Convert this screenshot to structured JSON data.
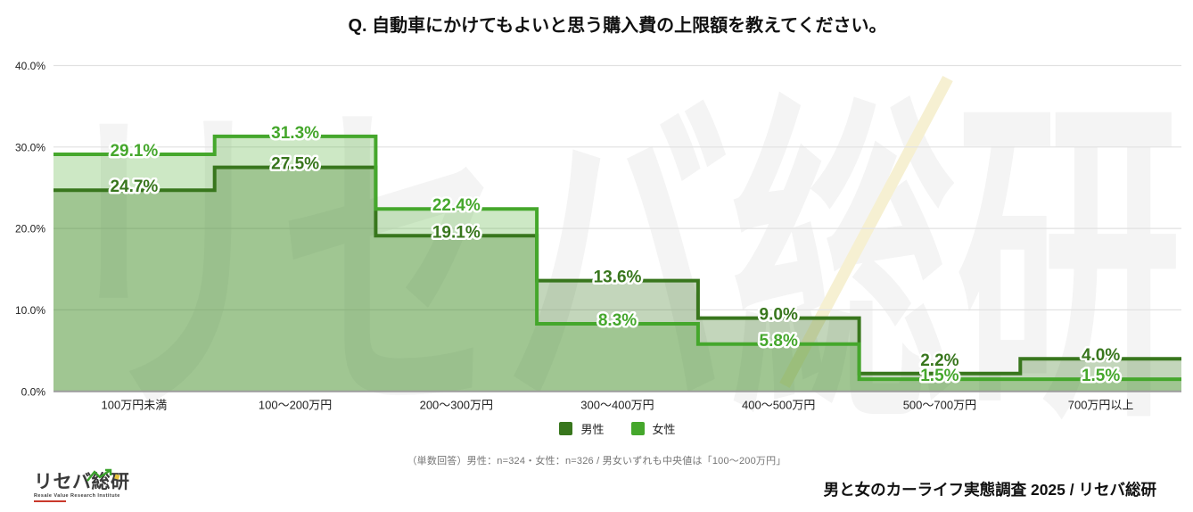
{
  "title": "Q. 自動車にかけてもよいと思う購入費の上限額を教えてください。",
  "chart_data": {
    "type": "area",
    "step": true,
    "title": "Q. 自動車にかけてもよいと思う購入費の上限額を教えてください。",
    "categories": [
      "100万円未満",
      "100〜200万円",
      "200〜300万円",
      "300〜400万円",
      "400〜500万円",
      "500〜700万円",
      "700万円以上"
    ],
    "series": [
      {
        "name": "男性",
        "n": 324,
        "color": "#38761d",
        "fill": "rgba(56,118,29,0.30)",
        "values": [
          24.7,
          27.5,
          19.1,
          13.6,
          9.0,
          2.2,
          4.0
        ]
      },
      {
        "name": "女性",
        "n": 326,
        "color": "#45a72c",
        "fill": "rgba(76,172,48,0.28)",
        "values": [
          29.1,
          31.3,
          22.4,
          8.3,
          5.8,
          1.5,
          1.5
        ]
      }
    ],
    "ylim": [
      0,
      40
    ],
    "yticks": [
      {
        "v": 0,
        "label": "0.0%"
      },
      {
        "v": 10,
        "label": "10.0%"
      },
      {
        "v": 20,
        "label": "20.0%"
      },
      {
        "v": 30,
        "label": "30.0%"
      },
      {
        "v": 40,
        "label": "40.0%"
      }
    ],
    "grid": true,
    "legend_position": "bottom",
    "value_label_format": "{v}%",
    "median_note": "男女いずれも中央値は「100〜200万円」"
  },
  "watermark": {
    "kana": "リセバ総研",
    "latin": "Resale Value Research Institute",
    "kana_color": "#f4f4f4",
    "latin_color": "rgba(222,222,222,0.55)",
    "accent_line_color": "#f6f0d2"
  },
  "legend": {
    "items": [
      {
        "label": "男性"
      },
      {
        "label": "女性"
      }
    ]
  },
  "footnote": "（単数回答）男性：n=324・女性：n=326 / 男女いずれも中央値は「100〜200万円」",
  "branding": {
    "logo_text": "リセバ総研",
    "logo_caption": "Resale Value Research Institute",
    "credit": "男と女のカーライフ実態調査 2025 / リセバ総研"
  }
}
